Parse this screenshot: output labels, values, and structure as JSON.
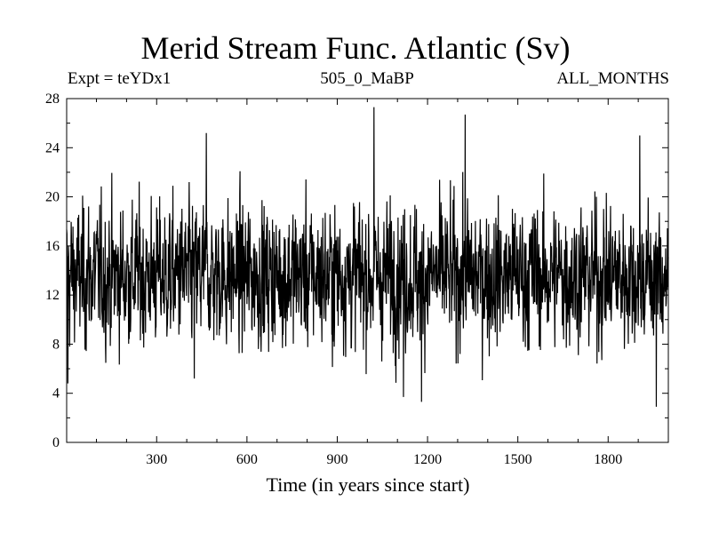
{
  "chart_data": {
    "type": "line",
    "title": "Merid Stream Func. Atlantic (Sv)",
    "subtitle_left": "Expt = teYDx1",
    "subtitle_center": "505_0_MaBP",
    "subtitle_right": "ALL_MONTHS",
    "xlabel": "Time (in years since start)",
    "ylabel": "",
    "xlim": [
      1,
      2000
    ],
    "ylim": [
      0,
      28
    ],
    "xticks": [
      300,
      600,
      900,
      1200,
      1500,
      1800
    ],
    "yticks": [
      0,
      4,
      8,
      12,
      16,
      20,
      24,
      28
    ],
    "grid": false,
    "series": [
      {
        "mean": 13.6,
        "std": 2.8,
        "n_points": 2000,
        "extremes": [
          {
            "x": 5,
            "y": 4.8
          },
          {
            "x": 1022,
            "y": 27.3
          },
          {
            "x": 1325,
            "y": 26.7
          },
          {
            "x": 465,
            "y": 25.2
          },
          {
            "x": 1905,
            "y": 25.0
          },
          {
            "x": 1180,
            "y": 3.3
          },
          {
            "x": 1960,
            "y": 2.9
          },
          {
            "x": 1120,
            "y": 3.7
          },
          {
            "x": 425,
            "y": 5.2
          }
        ]
      }
    ]
  }
}
